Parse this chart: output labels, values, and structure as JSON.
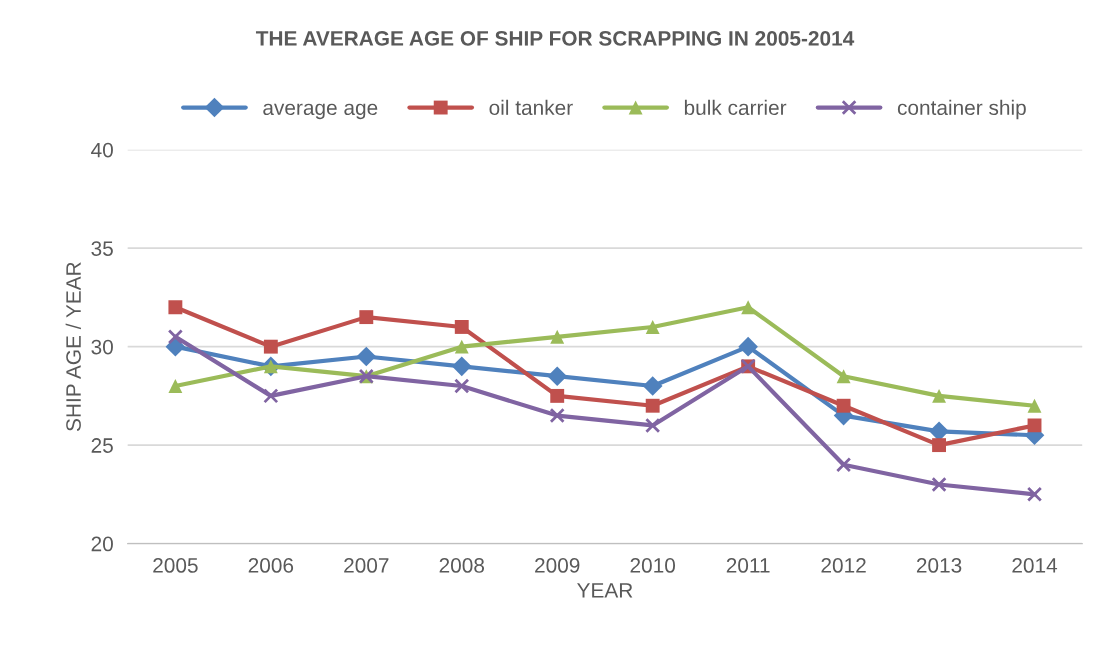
{
  "chart_data": {
    "type": "line",
    "title": "THE AVERAGE AGE OF SHIP FOR SCRAPPING IN 2005-2014",
    "xlabel": "YEAR",
    "ylabel": "SHIP AGE / YEAR",
    "categories": [
      "2005",
      "2006",
      "2007",
      "2008",
      "2009",
      "2010",
      "2011",
      "2012",
      "2013",
      "2014"
    ],
    "series": [
      {
        "name": "average age",
        "color": "#4f81bd",
        "marker": "diamond",
        "values": [
          30,
          29,
          29.5,
          29,
          28.5,
          28,
          30,
          26.5,
          25.7,
          25.5
        ]
      },
      {
        "name": "oil tanker",
        "color": "#c0504d",
        "marker": "square",
        "values": [
          32,
          30,
          31.5,
          31,
          27.5,
          27,
          29,
          27,
          25,
          26
        ]
      },
      {
        "name": "bulk carrier",
        "color": "#9bbb59",
        "marker": "triangle",
        "values": [
          28,
          29,
          28.5,
          30,
          30.5,
          31,
          32,
          28.5,
          27.5,
          27
        ]
      },
      {
        "name": "container ship",
        "color": "#8064a2",
        "marker": "cross",
        "values": [
          30.5,
          27.5,
          28.5,
          28,
          26.5,
          26,
          29,
          24,
          23,
          22.5
        ]
      }
    ],
    "ylim": [
      20,
      40
    ],
    "yticks": [
      20,
      25,
      30,
      35,
      40
    ],
    "grid": "y",
    "legend": "top",
    "line_style": "solid"
  }
}
